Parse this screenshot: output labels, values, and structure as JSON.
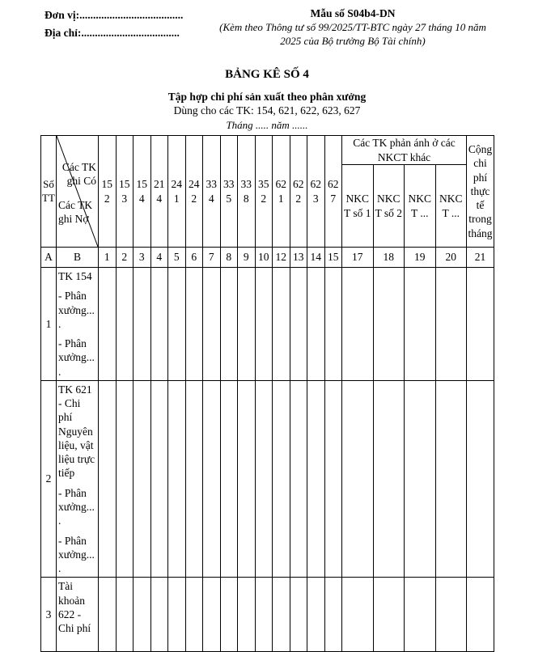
{
  "form_header": {
    "unit_label": "Đơn vị:......................................",
    "address_label": "Địa chỉ:....................................",
    "form_number": "Mẫu số S04b4-DN",
    "note": "(Kèm theo Thông tư số 99/2025/TT-BTC ngày 27 tháng 10 năm 2025 của Bộ trưởng Bộ Tài chính)"
  },
  "title": {
    "main": "BẢNG KÊ SỐ 4",
    "subtitle": "Tập hợp chi phí sản xuất theo phân xưởng",
    "applies_to": "Dùng cho các TK: 154, 621, 622, 623, 627",
    "period": "Tháng ..... năm ......"
  },
  "table": {
    "stt_header": "Số TT",
    "diagonal": {
      "top_right": "Các TK ghi Có",
      "bottom_left": "Các TK ghi Nợ"
    },
    "tk_columns": [
      "152",
      "153",
      "154",
      "214",
      "241",
      "242",
      "334",
      "335",
      "338",
      "352",
      "621",
      "622",
      "623",
      "627"
    ],
    "nkct_group_header": "Các TK phản ánh ở các NKCT khác",
    "nkct_columns": [
      "NKCT số 1",
      "NKCT số 2",
      "NKCT ...",
      "NKCT ..."
    ],
    "total_header": "Cộng chi phí thực tế trong tháng",
    "index_row": [
      "A",
      "B",
      "1",
      "2",
      "3",
      "4",
      "5",
      "6",
      "7",
      "8",
      "9",
      "10",
      "12",
      "13",
      "14",
      "15",
      "17",
      "18",
      "19",
      "20",
      "21"
    ],
    "rows": [
      {
        "stt": "1",
        "items": [
          "TK 154",
          "- Phân xưởng....",
          "- Phân xưởng...."
        ]
      },
      {
        "stt": "2",
        "items": [
          "TK 621\n- Chi phí Nguyên liệu, vật liệu trực tiếp",
          "- Phân xưởng....",
          "- Phân xưởng...."
        ]
      },
      {
        "stt": "3",
        "items": [
          "Tài khoản 622 - Chi phí"
        ]
      }
    ]
  }
}
